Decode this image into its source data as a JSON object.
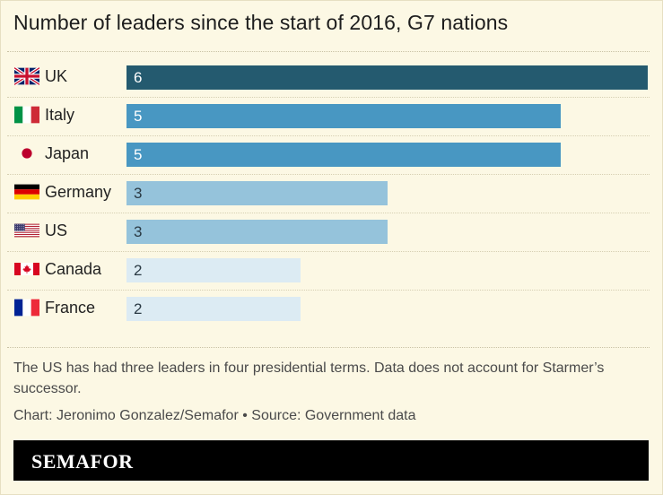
{
  "title": "Number of leaders since the start of 2016, G7 nations",
  "chart_data": {
    "type": "bar",
    "orientation": "horizontal",
    "title": "Number of leaders since the start of 2016, G7 nations",
    "categories": [
      "UK",
      "Italy",
      "Japan",
      "Germany",
      "US",
      "Canada",
      "France"
    ],
    "values": [
      6,
      5,
      5,
      3,
      3,
      2,
      2
    ],
    "flags": [
      "uk-flag-icon",
      "italy-flag-icon",
      "japan-flag-icon",
      "germany-flag-icon",
      "us-flag-icon",
      "canada-flag-icon",
      "france-flag-icon"
    ],
    "xlim": [
      0,
      6
    ],
    "grid": false,
    "data_labels": "inside-left",
    "colors": {
      "6": "#245a6f",
      "5": "#4897c2",
      "3": "#95c3db",
      "2": "#dcebf3"
    },
    "label_colors": {
      "6": "#ffffff",
      "5": "#ffffff",
      "3": "#2a3a44",
      "2": "#2a3a44"
    }
  },
  "note": "The US has had three leaders in four presidential terms. Data does not account for Starmer’s successor.",
  "credit": "Chart: Jeronimo Gonzalez/Semafor • Source: Government data",
  "brand": "SEMAFOR"
}
